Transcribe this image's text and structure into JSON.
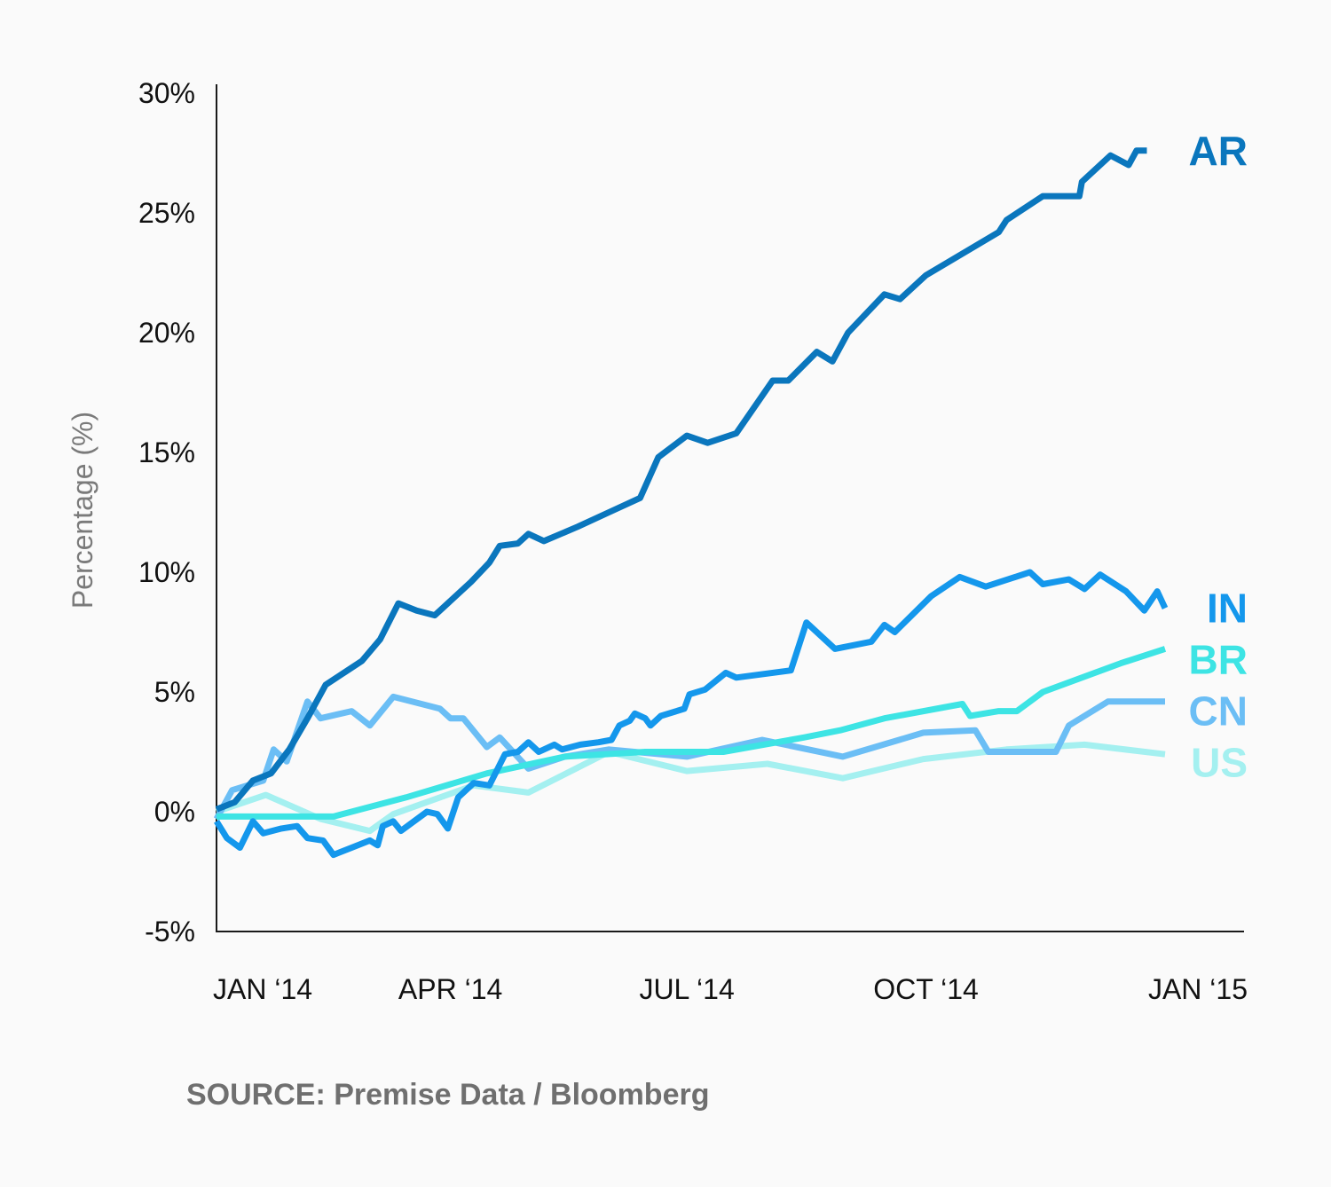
{
  "chart_data": {
    "type": "line",
    "title": "",
    "ylabel": "Percentage (%)",
    "xlabel": "",
    "ylim": [
      -5,
      30
    ],
    "yticks": [
      {
        "value": 30,
        "label": "30%"
      },
      {
        "value": 25,
        "label": "25%"
      },
      {
        "value": 20,
        "label": "20%"
      },
      {
        "value": 15,
        "label": "15%"
      },
      {
        "value": 10,
        "label": "10%"
      },
      {
        "value": 5,
        "label": "5%"
      },
      {
        "value": 0,
        "label": "0%"
      },
      {
        "value": -5,
        "label": "-5%"
      }
    ],
    "xlim": [
      "2014-01-01",
      "2015-01-01"
    ],
    "xticks": [
      {
        "value": "2014-01-01",
        "label": "JAN ‘14"
      },
      {
        "value": "2014-04-01",
        "label": "APR ‘14"
      },
      {
        "value": "2014-07-01",
        "label": "JUL ‘14"
      },
      {
        "value": "2014-10-01",
        "label": "OCT ‘14"
      },
      {
        "value": "2015-01-01",
        "label": "JAN ‘15"
      }
    ],
    "grid": false,
    "legend": "direct labels at right end of each line",
    "series": [
      {
        "name": "AR",
        "color": "#0a76bd",
        "points": [
          [
            "2014-01-01",
            0.1
          ],
          [
            "2014-01-08",
            0.4
          ],
          [
            "2014-01-15",
            1.3
          ],
          [
            "2014-01-22",
            1.6
          ],
          [
            "2014-01-29",
            2.6
          ],
          [
            "2014-02-05",
            3.9
          ],
          [
            "2014-02-12",
            5.3
          ],
          [
            "2014-02-19",
            5.8
          ],
          [
            "2014-02-26",
            6.3
          ],
          [
            "2014-03-05",
            7.2
          ],
          [
            "2014-03-12",
            8.7
          ],
          [
            "2014-03-19",
            8.4
          ],
          [
            "2014-03-26",
            8.2
          ],
          [
            "2014-04-02",
            8.9
          ],
          [
            "2014-04-09",
            9.6
          ],
          [
            "2014-04-16",
            10.4
          ],
          [
            "2014-04-20",
            11.1
          ],
          [
            "2014-04-27",
            11.2
          ],
          [
            "2014-05-01",
            11.6
          ],
          [
            "2014-05-07",
            11.3
          ],
          [
            "2014-05-20",
            11.9
          ],
          [
            "2014-06-01",
            12.5
          ],
          [
            "2014-06-13",
            13.1
          ],
          [
            "2014-06-20",
            14.8
          ],
          [
            "2014-07-01",
            15.7
          ],
          [
            "2014-07-09",
            15.4
          ],
          [
            "2014-07-20",
            15.8
          ],
          [
            "2014-08-03",
            18.0
          ],
          [
            "2014-08-09",
            18.0
          ],
          [
            "2014-08-20",
            19.2
          ],
          [
            "2014-08-26",
            18.8
          ],
          [
            "2014-09-01",
            20.0
          ],
          [
            "2014-09-15",
            21.6
          ],
          [
            "2014-09-21",
            21.4
          ],
          [
            "2014-10-01",
            22.4
          ],
          [
            "2014-10-29",
            24.2
          ],
          [
            "2014-11-01",
            24.7
          ],
          [
            "2014-11-15",
            25.7
          ],
          [
            "2014-11-29",
            25.7
          ],
          [
            "2014-11-30",
            26.3
          ],
          [
            "2014-12-11",
            27.4
          ],
          [
            "2014-12-18",
            27.0
          ],
          [
            "2014-12-21",
            27.6
          ],
          [
            "2014-12-25",
            27.6
          ]
        ]
      },
      {
        "name": "IN",
        "color": "#1497ec",
        "points": [
          [
            "2014-01-01",
            -0.4
          ],
          [
            "2014-01-05",
            -1.1
          ],
          [
            "2014-01-10",
            -1.5
          ],
          [
            "2014-01-15",
            -0.4
          ],
          [
            "2014-01-19",
            -0.9
          ],
          [
            "2014-01-26",
            -0.7
          ],
          [
            "2014-02-01",
            -0.6
          ],
          [
            "2014-02-05",
            -1.1
          ],
          [
            "2014-02-11",
            -1.2
          ],
          [
            "2014-02-15",
            -1.8
          ],
          [
            "2014-02-22",
            -1.5
          ],
          [
            "2014-03-01",
            -1.2
          ],
          [
            "2014-03-04",
            -1.4
          ],
          [
            "2014-03-06",
            -0.6
          ],
          [
            "2014-03-10",
            -0.4
          ],
          [
            "2014-03-13",
            -0.8
          ],
          [
            "2014-03-23",
            0.0
          ],
          [
            "2014-03-27",
            -0.1
          ],
          [
            "2014-03-31",
            -0.7
          ],
          [
            "2014-04-04",
            0.6
          ],
          [
            "2014-04-10",
            1.2
          ],
          [
            "2014-04-16",
            1.1
          ],
          [
            "2014-04-22",
            2.4
          ],
          [
            "2014-04-27",
            2.5
          ],
          [
            "2014-05-01",
            2.9
          ],
          [
            "2014-05-05",
            2.5
          ],
          [
            "2014-05-11",
            2.8
          ],
          [
            "2014-05-14",
            2.6
          ],
          [
            "2014-05-21",
            2.8
          ],
          [
            "2014-05-28",
            2.9
          ],
          [
            "2014-06-02",
            3.0
          ],
          [
            "2014-06-05",
            3.6
          ],
          [
            "2014-06-09",
            3.8
          ],
          [
            "2014-06-11",
            4.1
          ],
          [
            "2014-06-15",
            3.9
          ],
          [
            "2014-06-17",
            3.6
          ],
          [
            "2014-06-21",
            4.0
          ],
          [
            "2014-06-30",
            4.3
          ],
          [
            "2014-07-02",
            4.9
          ],
          [
            "2014-07-08",
            5.1
          ],
          [
            "2014-07-16",
            5.8
          ],
          [
            "2014-07-20",
            5.6
          ],
          [
            "2014-08-10",
            5.9
          ],
          [
            "2014-08-16",
            7.9
          ],
          [
            "2014-08-27",
            6.8
          ],
          [
            "2014-09-10",
            7.1
          ],
          [
            "2014-09-15",
            7.8
          ],
          [
            "2014-09-19",
            7.5
          ],
          [
            "2014-10-03",
            9.0
          ],
          [
            "2014-10-14",
            9.8
          ],
          [
            "2014-10-24",
            9.4
          ],
          [
            "2014-11-10",
            10.0
          ],
          [
            "2014-11-15",
            9.5
          ],
          [
            "2014-11-25",
            9.7
          ],
          [
            "2014-12-01",
            9.3
          ],
          [
            "2014-12-07",
            9.9
          ],
          [
            "2014-12-17",
            9.2
          ],
          [
            "2014-12-24",
            8.4
          ],
          [
            "2014-12-29",
            9.2
          ],
          [
            "2015-01-01",
            8.5
          ]
        ]
      },
      {
        "name": "BR",
        "color": "#3de4e4",
        "points": [
          [
            "2014-01-01",
            -0.2
          ],
          [
            "2014-02-15",
            -0.2
          ],
          [
            "2014-03-15",
            0.6
          ],
          [
            "2014-04-15",
            1.6
          ],
          [
            "2014-05-15",
            2.3
          ],
          [
            "2014-06-15",
            2.5
          ],
          [
            "2014-07-15",
            2.5
          ],
          [
            "2014-08-15",
            3.1
          ],
          [
            "2014-08-29",
            3.4
          ],
          [
            "2014-09-15",
            3.9
          ],
          [
            "2014-10-15",
            4.5
          ],
          [
            "2014-10-18",
            4.0
          ],
          [
            "2014-10-29",
            4.2
          ],
          [
            "2014-11-05",
            4.2
          ],
          [
            "2014-11-15",
            5.0
          ],
          [
            "2014-12-15",
            6.2
          ],
          [
            "2015-01-01",
            6.8
          ]
        ]
      },
      {
        "name": "CN",
        "color": "#6bbef5",
        "points": [
          [
            "2014-01-01",
            -0.3
          ],
          [
            "2014-01-07",
            0.9
          ],
          [
            "2014-01-19",
            1.3
          ],
          [
            "2014-01-23",
            2.6
          ],
          [
            "2014-01-28",
            2.1
          ],
          [
            "2014-02-05",
            4.6
          ],
          [
            "2014-02-10",
            3.9
          ],
          [
            "2014-02-22",
            4.2
          ],
          [
            "2014-03-01",
            3.6
          ],
          [
            "2014-03-10",
            4.8
          ],
          [
            "2014-03-28",
            4.3
          ],
          [
            "2014-04-01",
            3.9
          ],
          [
            "2014-04-06",
            3.9
          ],
          [
            "2014-04-15",
            2.7
          ],
          [
            "2014-04-20",
            3.1
          ],
          [
            "2014-05-01",
            1.8
          ],
          [
            "2014-05-15",
            2.3
          ],
          [
            "2014-06-01",
            2.6
          ],
          [
            "2014-07-01",
            2.3
          ],
          [
            "2014-07-30",
            3.0
          ],
          [
            "2014-08-30",
            2.3
          ],
          [
            "2014-09-30",
            3.3
          ],
          [
            "2014-10-20",
            3.4
          ],
          [
            "2014-10-25",
            2.5
          ],
          [
            "2014-11-20",
            2.5
          ],
          [
            "2014-11-25",
            3.6
          ],
          [
            "2014-12-10",
            4.6
          ],
          [
            "2015-01-01",
            4.6
          ]
        ]
      },
      {
        "name": "US",
        "color": "#a4f0f0",
        "points": [
          [
            "2014-01-01",
            0.0
          ],
          [
            "2014-01-20",
            0.7
          ],
          [
            "2014-02-10",
            -0.3
          ],
          [
            "2014-03-01",
            -0.8
          ],
          [
            "2014-03-10",
            -0.1
          ],
          [
            "2014-04-10",
            1.1
          ],
          [
            "2014-05-01",
            0.8
          ],
          [
            "2014-06-01",
            2.5
          ],
          [
            "2014-07-01",
            1.7
          ],
          [
            "2014-08-01",
            2.0
          ],
          [
            "2014-08-30",
            1.4
          ],
          [
            "2014-09-30",
            2.2
          ],
          [
            "2014-11-01",
            2.6
          ],
          [
            "2014-12-01",
            2.8
          ],
          [
            "2015-01-01",
            2.4
          ]
        ]
      }
    ],
    "source": "SOURCE: Premise Data / Bloomberg"
  }
}
